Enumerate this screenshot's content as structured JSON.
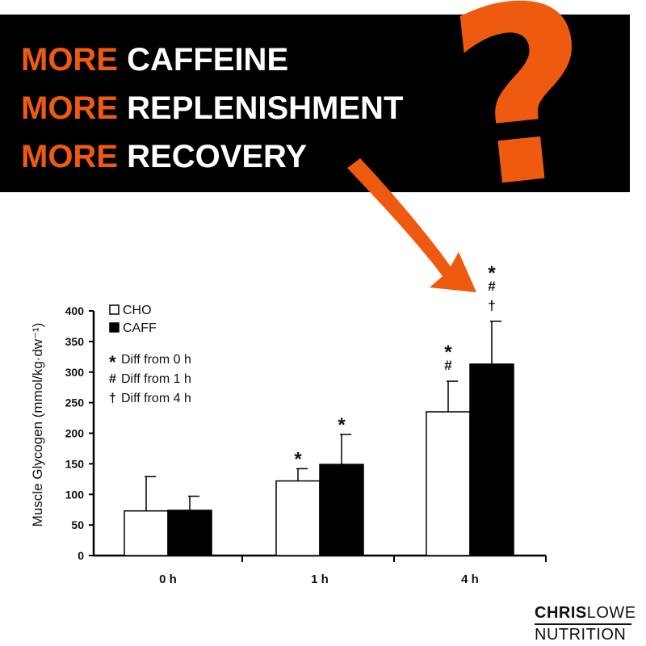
{
  "header": {
    "lines": [
      {
        "accent": "MORE",
        "rest": "CAFFEINE"
      },
      {
        "accent": "MORE",
        "rest": "REPLENISHMENT"
      },
      {
        "accent": "MORE",
        "rest": "RECOVERY"
      }
    ],
    "question_mark": "?"
  },
  "colors": {
    "accent": "#ee5a0f",
    "banner": "#000000"
  },
  "brand": {
    "name_bold": "CHRIS",
    "name_light": "LOWE",
    "subtitle": "NUTRITION"
  },
  "chart_data": {
    "type": "bar",
    "ylabel": "Muscle Glycogen (mmol/kg·dw⁻¹)",
    "ylim": [
      0,
      400
    ],
    "yticks": [
      0,
      50,
      100,
      150,
      200,
      250,
      300,
      350,
      400
    ],
    "categories": [
      "0 h",
      "1 h",
      "4 h"
    ],
    "series": [
      {
        "name": "CHO",
        "fill": "#ffffff",
        "values": [
          73,
          122,
          235
        ],
        "errors": [
          56,
          20,
          50
        ]
      },
      {
        "name": "CAFF",
        "fill": "#000000",
        "values": [
          74,
          149,
          313
        ],
        "errors": [
          23,
          49,
          70
        ]
      }
    ],
    "legend_position": "top-left",
    "annotations_legend": [
      {
        "symbol": "*",
        "text": "Diff from 0 h"
      },
      {
        "symbol": "#",
        "text": "Diff from 1 h"
      },
      {
        "symbol": "†",
        "text": "Diff from 4 h"
      }
    ],
    "significance": [
      {
        "series": "CHO",
        "category": "1 h",
        "marks": [
          "*"
        ]
      },
      {
        "series": "CAFF",
        "category": "1 h",
        "marks": [
          "*"
        ]
      },
      {
        "series": "CHO",
        "category": "4 h",
        "marks": [
          "*",
          "#"
        ]
      },
      {
        "series": "CAFF",
        "category": "4 h",
        "marks": [
          "*",
          "#",
          "†"
        ]
      }
    ]
  }
}
